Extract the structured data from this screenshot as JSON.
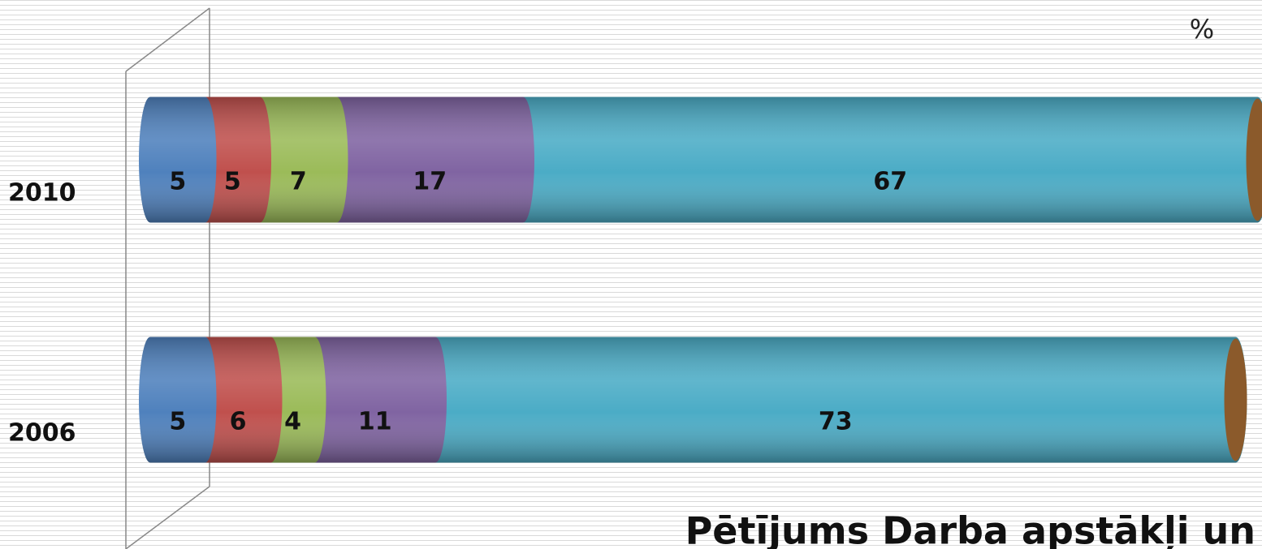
{
  "chart_data": {
    "type": "stacked-cylinder-bar",
    "unit_label": "%",
    "annotation": "Pētījums Darba apstākļi un",
    "categories": [
      "2010",
      "2006"
    ],
    "series": [
      {
        "color": "#4f81bd",
        "values": [
          5,
          5
        ]
      },
      {
        "color": "#c0504d",
        "values": [
          5,
          6
        ]
      },
      {
        "color": "#9bbb59",
        "values": [
          7,
          4
        ]
      },
      {
        "color": "#8064a2",
        "values": [
          17,
          11
        ]
      },
      {
        "color": "#4bacc6",
        "values": [
          67,
          73
        ]
      }
    ],
    "xlim": [
      0,
      100
    ]
  }
}
